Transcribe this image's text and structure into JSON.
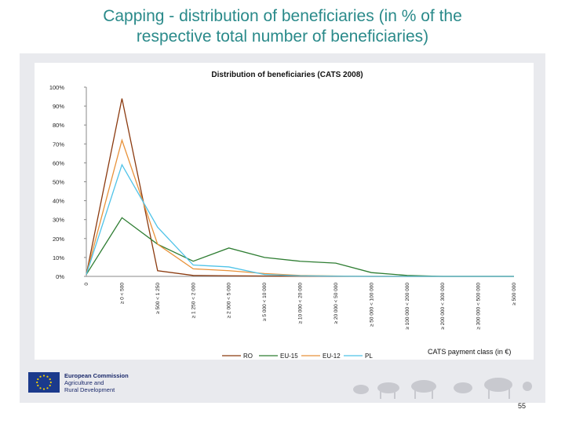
{
  "slide": {
    "title_line1": "Capping - distribution of beneficiaries (in % of the",
    "title_line2": "respective total number of beneficiaries)",
    "page_number": "55"
  },
  "footer": {
    "org_line1": "European Commission",
    "org_line2": "Agriculture and",
    "org_line3": "Rural Development"
  },
  "chart_data": {
    "type": "line",
    "title": "Distribution of beneficiaries (CATS 2008)",
    "xlabel": "CATS payment class (in €)",
    "ylabel": "",
    "ylim": [
      0,
      100
    ],
    "yticks": [
      "0%",
      "10%",
      "20%",
      "30%",
      "40%",
      "50%",
      "60%",
      "70%",
      "80%",
      "90%",
      "100%"
    ],
    "grid": false,
    "legend_position": "bottom",
    "categories": [
      "0",
      "≥ 0 < 500",
      "≥ 500 < 1 250",
      "≥ 1 250 < 2 000",
      "≥ 2 000 < 5 000",
      "≥ 5 000 < 10 000",
      "≥ 10 000 < 20 000",
      "≥ 20 000 < 50 000",
      "≥ 50 000 < 100 000",
      "≥ 100 000 < 200 000",
      "≥ 200 000 < 300 000",
      "≥ 300 000 < 500 000",
      "≥ 500 000"
    ],
    "series": [
      {
        "name": "RO",
        "color": "#8b3a0f",
        "values": [
          1,
          94,
          3,
          0.5,
          0.3,
          0.2,
          0.1,
          0,
          0,
          0,
          0,
          0,
          0
        ]
      },
      {
        "name": "EU-15",
        "color": "#2e7d32",
        "values": [
          1,
          31,
          17,
          8,
          15,
          10,
          8,
          7,
          2,
          0.5,
          0,
          0,
          0
        ]
      },
      {
        "name": "EU-12",
        "color": "#e8923a",
        "values": [
          1,
          72,
          17,
          4,
          3,
          1.5,
          0.5,
          0.2,
          0,
          0,
          0,
          0,
          0
        ]
      },
      {
        "name": "PL",
        "color": "#4fc3e8",
        "values": [
          1,
          59,
          26,
          6,
          5,
          1,
          0.3,
          0.1,
          0,
          0,
          0,
          0,
          0
        ]
      }
    ]
  }
}
